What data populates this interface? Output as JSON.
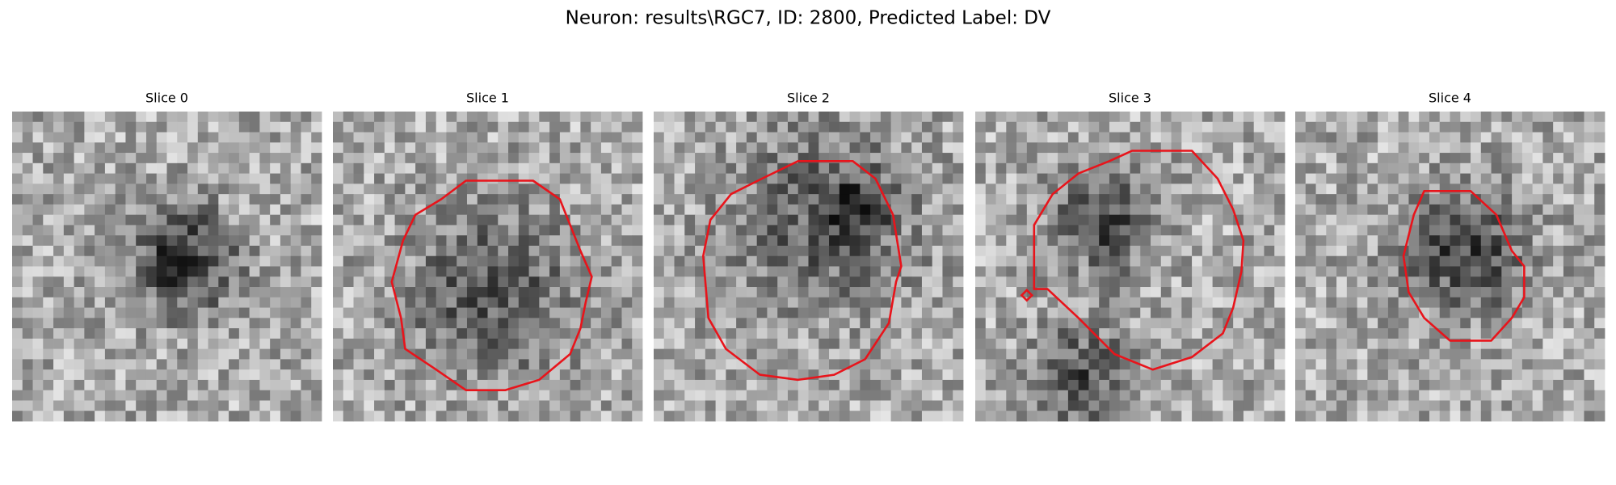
{
  "header": {
    "title": "Neuron: results\\RGC7, ID: 2800, Predicted Label: DV"
  },
  "panels": [
    {
      "title": "Slice 0"
    },
    {
      "title": "Slice 1"
    },
    {
      "title": "Slice 2"
    },
    {
      "title": "Slice 3"
    },
    {
      "title": "Slice 4"
    }
  ]
}
